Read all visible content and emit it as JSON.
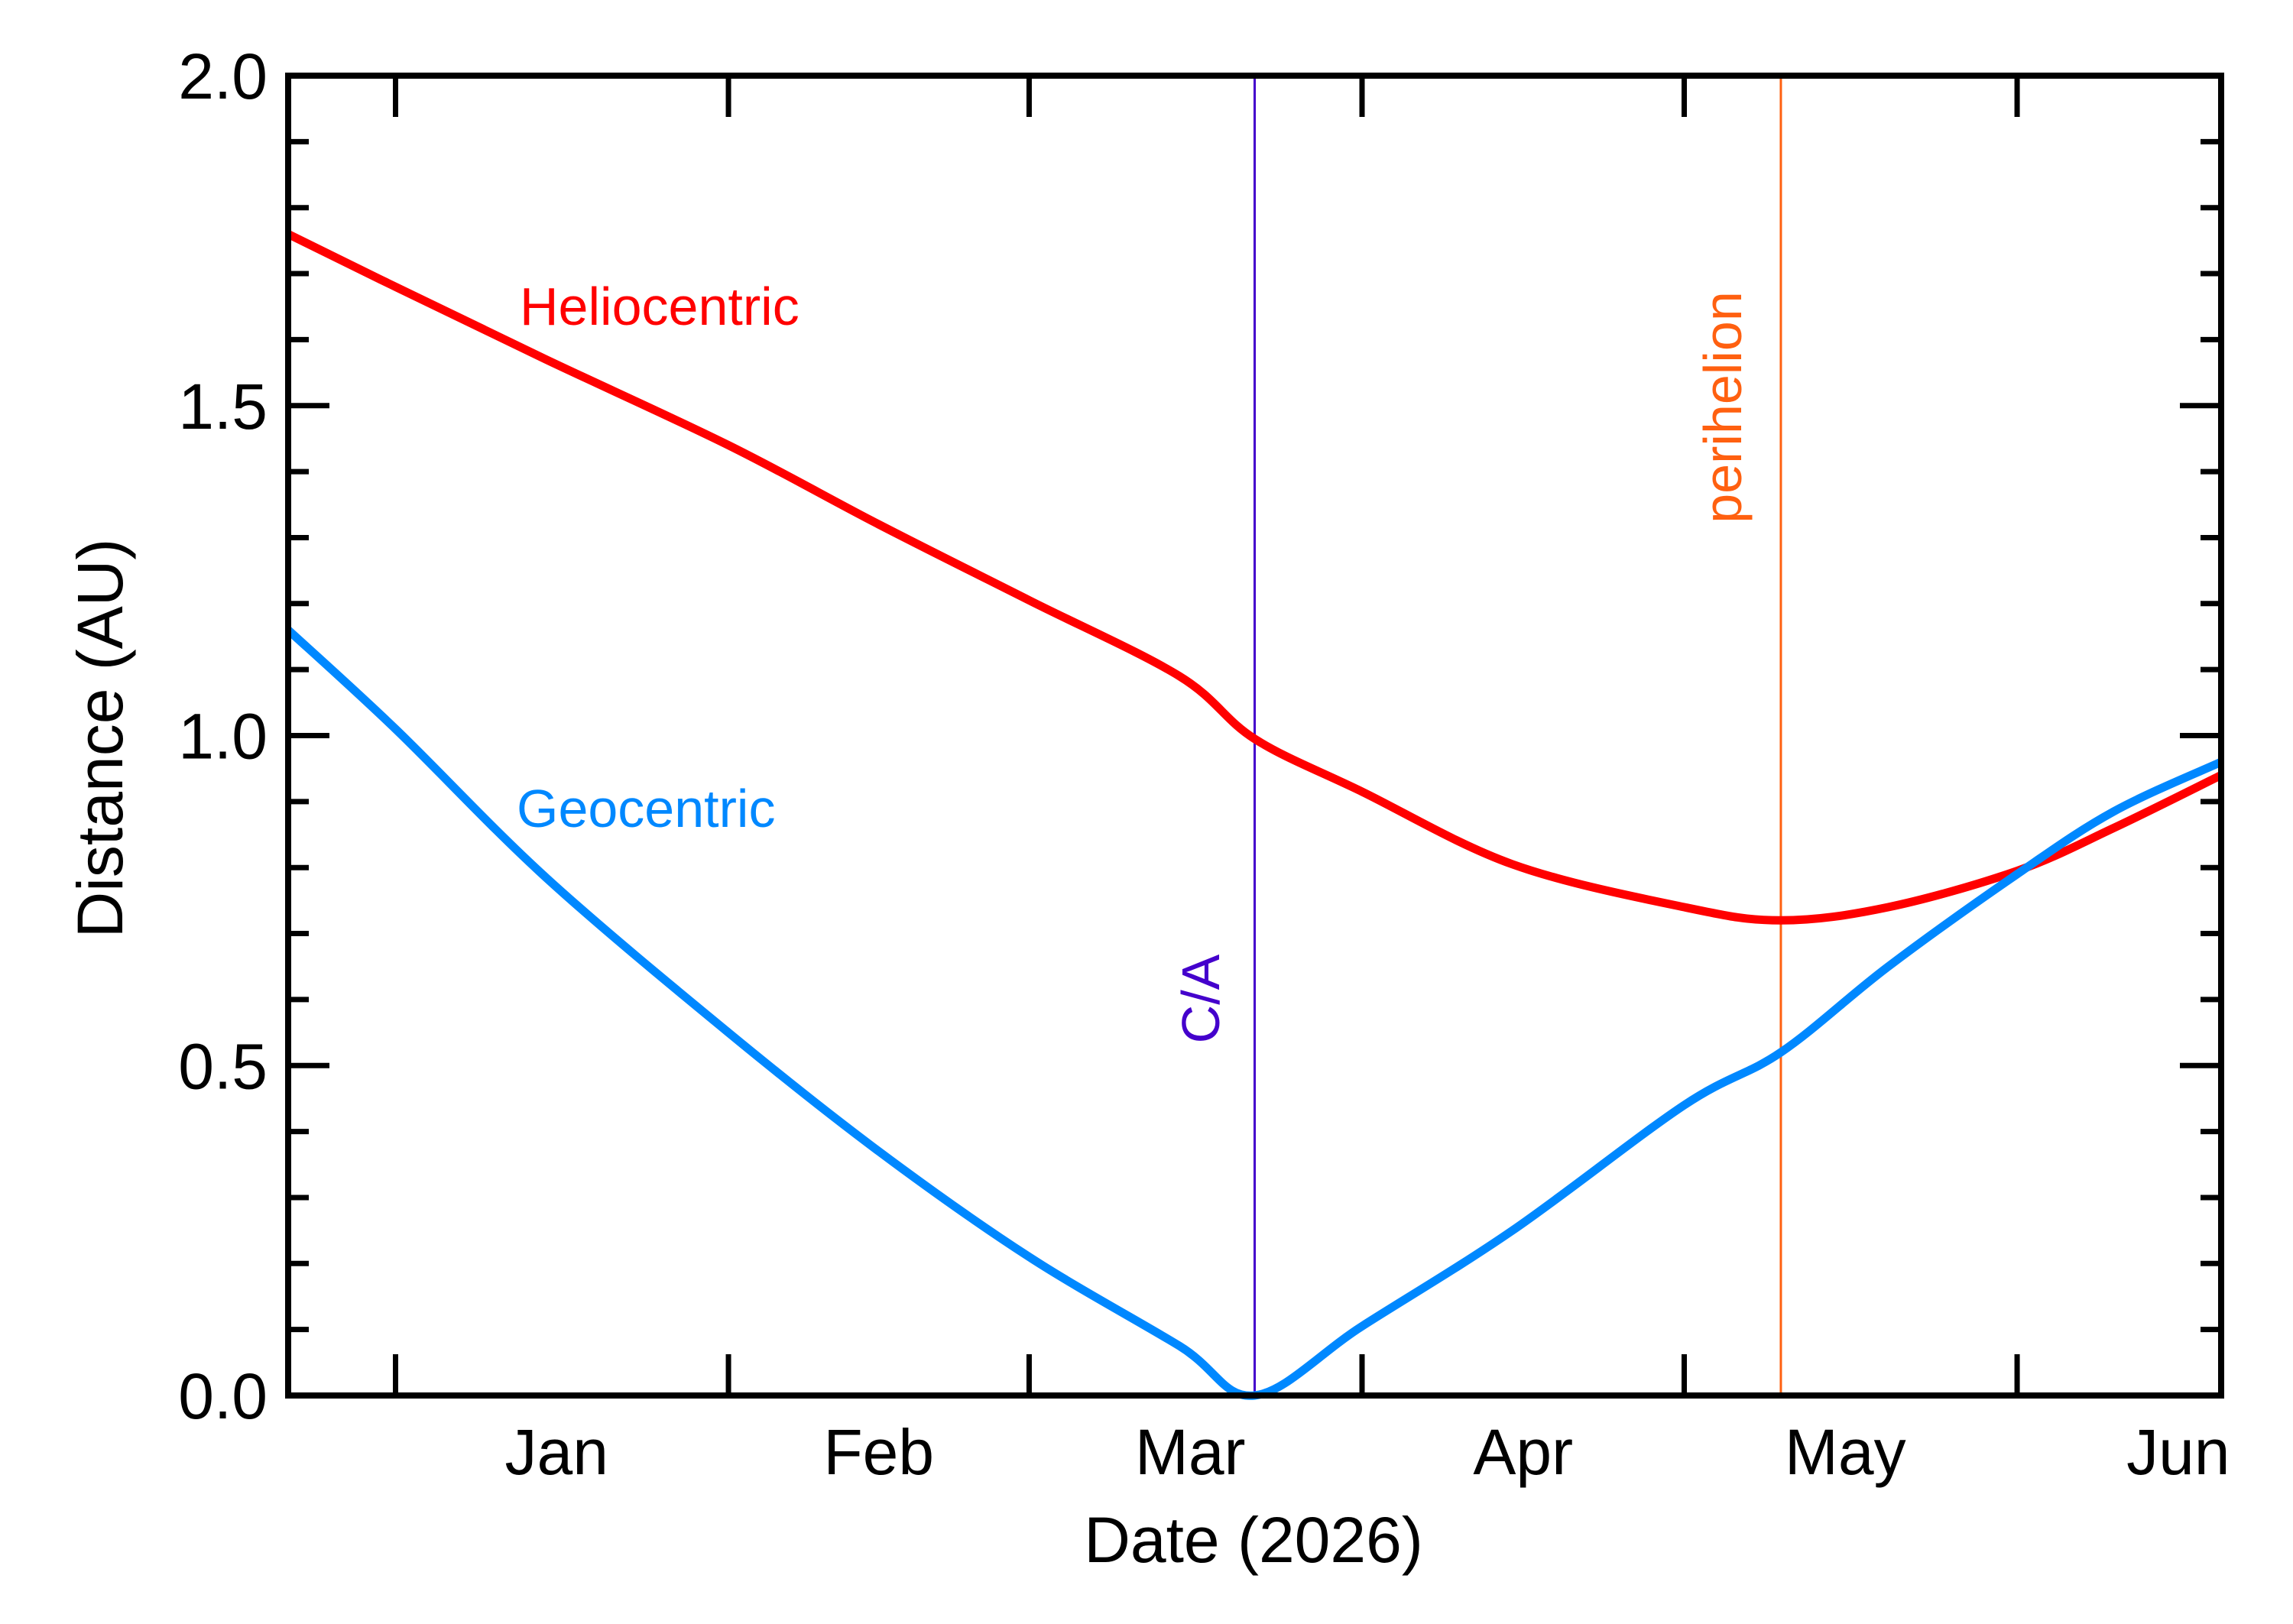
{
  "chart_data": {
    "type": "line",
    "title": "",
    "xlabel": "Date (2026)",
    "ylabel": "Distance (AU)",
    "xlim": [
      "2025-12-22",
      "2026-06-20"
    ],
    "ylim": [
      0.0,
      2.0
    ],
    "grid": false,
    "yticks": [
      {
        "value": 0.0,
        "label": "0.0"
      },
      {
        "value": 0.5,
        "label": "0.5"
      },
      {
        "value": 1.0,
        "label": "1.0"
      },
      {
        "value": 1.5,
        "label": "1.5"
      },
      {
        "value": 2.0,
        "label": "2.0"
      }
    ],
    "y_minor_step": 0.1,
    "x_month_ticks": [
      "2026-01-01",
      "2026-02-01",
      "2026-03-01",
      "2026-04-01",
      "2026-05-01",
      "2026-06-01"
    ],
    "x_tick_labels": [
      {
        "label": "Jan",
        "date": "2026-01-16"
      },
      {
        "label": "Feb",
        "date": "2026-02-15"
      },
      {
        "label": "Mar",
        "date": "2026-03-16"
      },
      {
        "label": "Apr",
        "date": "2026-04-16"
      },
      {
        "label": "May",
        "date": "2026-05-16"
      },
      {
        "label": "Jun",
        "date": "2026-06-16"
      }
    ],
    "series": [
      {
        "name": "Heliocentric",
        "color": "#ff0000",
        "x": [
          "2025-12-22",
          "2026-01-01",
          "2026-01-15",
          "2026-02-01",
          "2026-02-15",
          "2026-03-01",
          "2026-03-15",
          "2026-03-22",
          "2026-04-01",
          "2026-04-15",
          "2026-05-01",
          "2026-05-10",
          "2026-05-20",
          "2026-06-01",
          "2026-06-10",
          "2026-06-20"
        ],
        "y": [
          1.76,
          1.68,
          1.57,
          1.44,
          1.32,
          1.205,
          1.09,
          0.995,
          0.915,
          0.805,
          0.74,
          0.72,
          0.74,
          0.795,
          0.86,
          0.94
        ]
      },
      {
        "name": "Geocentric",
        "color": "#0088ff",
        "x": [
          "2025-12-22",
          "2026-01-01",
          "2026-01-15",
          "2026-02-01",
          "2026-02-15",
          "2026-03-01",
          "2026-03-15",
          "2026-03-22",
          "2026-04-01",
          "2026-04-15",
          "2026-05-01",
          "2026-05-10",
          "2026-05-20",
          "2026-06-01",
          "2026-06-10",
          "2026-06-20"
        ],
        "y": [
          1.16,
          1.01,
          0.785,
          0.55,
          0.37,
          0.21,
          0.075,
          0.0,
          0.105,
          0.25,
          0.44,
          0.52,
          0.65,
          0.79,
          0.885,
          0.96
        ]
      }
    ],
    "annotations": [
      {
        "label": "C/A",
        "date": "2026-03-22",
        "color": "#4400cc"
      },
      {
        "label": "perihelion",
        "date": "2026-05-10",
        "color": "#ff6010"
      }
    ]
  }
}
